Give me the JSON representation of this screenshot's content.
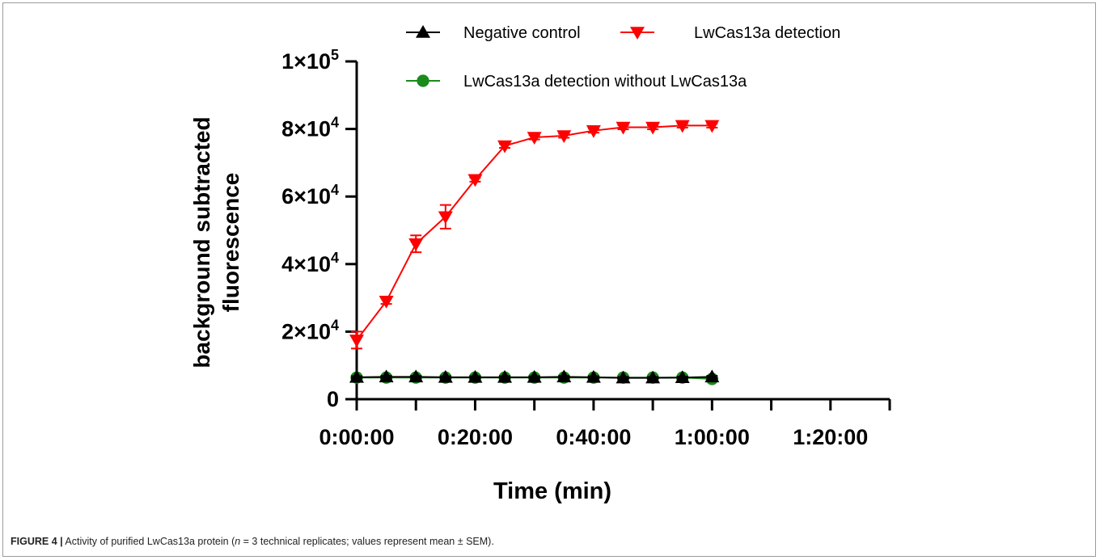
{
  "chart_data": {
    "type": "line",
    "xlabel": "Time (min)",
    "ylabel_line1": "background subtracted",
    "ylabel_line2": "fluorescence",
    "x_tick_values": [
      0,
      1200,
      2400,
      3600,
      4800
    ],
    "x_tick_labels": [
      "0:00:00",
      "0:20:00",
      "0:40:00",
      "1:00:00",
      "1:20:00"
    ],
    "xlim": [
      0,
      5400
    ],
    "x_minor_step": 600,
    "ylim": [
      0,
      100000
    ],
    "y_tick_values": [
      0,
      20000,
      40000,
      60000,
      80000,
      100000
    ],
    "y_tick_labels": [
      {
        "base": "0",
        "exp": ""
      },
      {
        "base": "2×10",
        "exp": "4"
      },
      {
        "base": "4×10",
        "exp": "4"
      },
      {
        "base": "6×10",
        "exp": "4"
      },
      {
        "base": "8×10",
        "exp": "4"
      },
      {
        "base": "1×10",
        "exp": "5"
      }
    ],
    "x": [
      0,
      300,
      600,
      900,
      1200,
      1500,
      1800,
      2100,
      2400,
      2700,
      3000,
      3300,
      3600
    ],
    "series": [
      {
        "name": "Negative control",
        "marker": "triangle-up",
        "color": "#000000",
        "values": [
          6500,
          6600,
          6600,
          6500,
          6500,
          6500,
          6500,
          6600,
          6500,
          6300,
          6300,
          6400,
          6600
        ],
        "errors": [
          300,
          300,
          300,
          300,
          300,
          300,
          300,
          300,
          300,
          300,
          300,
          300,
          300
        ]
      },
      {
        "name": "LwCas13a detection",
        "marker": "triangle-down",
        "color": "#ff0000",
        "values": [
          17500,
          29000,
          46000,
          54000,
          65000,
          75000,
          77500,
          78000,
          79500,
          80500,
          80500,
          81000,
          81000
        ],
        "errors": [
          2500,
          800,
          2500,
          3500,
          600,
          600,
          600,
          600,
          600,
          600,
          600,
          600,
          600
        ]
      },
      {
        "name": "LwCas13a detection without LwCas13a",
        "marker": "circle",
        "color": "#1a8a1a",
        "values": [
          6400,
          6400,
          6400,
          6400,
          6400,
          6400,
          6400,
          6400,
          6400,
          6400,
          6400,
          6400,
          6000
        ],
        "errors": [
          200,
          200,
          200,
          200,
          200,
          200,
          200,
          200,
          200,
          200,
          200,
          200,
          200
        ]
      }
    ],
    "legend_position": "top"
  },
  "caption": {
    "label": "FIGURE 4 |",
    "text_before_n": " Activity of purified LwCas13a protein (",
    "n_symbol": "n",
    "text_after_n": " = 3 technical replicates; values represent mean ± SEM)."
  }
}
